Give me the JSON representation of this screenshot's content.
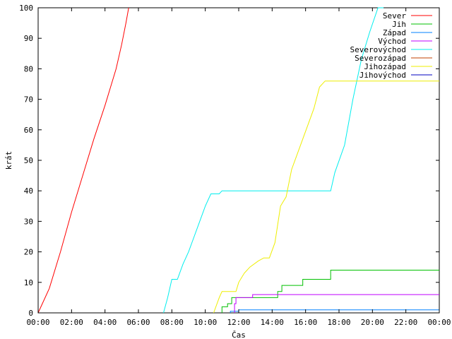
{
  "chart_data": {
    "type": "line",
    "title": "",
    "xlabel": "Čas",
    "ylabel": "krát",
    "xlim": [
      "00:00",
      "24:00"
    ],
    "ylim": [
      0,
      100
    ],
    "grid": false,
    "legend_position": "top-right",
    "x_ticks": [
      "00:00",
      "02:00",
      "04:00",
      "06:00",
      "08:00",
      "10:00",
      "12:00",
      "14:00",
      "16:00",
      "18:00",
      "20:00",
      "22:00",
      "00:00"
    ],
    "y_ticks": [
      "0",
      "10",
      "20",
      "30",
      "40",
      "50",
      "60",
      "70",
      "80",
      "90",
      "100"
    ],
    "series": [
      {
        "name": "Sever",
        "color": "#ff0000",
        "points": [
          [
            "00:00",
            0
          ],
          [
            "00:40",
            8
          ],
          [
            "01:20",
            20
          ],
          [
            "02:00",
            33
          ],
          [
            "02:40",
            45
          ],
          [
            "03:20",
            57
          ],
          [
            "04:00",
            68
          ],
          [
            "04:40",
            80
          ],
          [
            "05:00",
            88
          ],
          [
            "05:15",
            95
          ],
          [
            "05:25",
            100
          ]
        ]
      },
      {
        "name": "Jih",
        "color": "#00c000",
        "points": [
          [
            "11:00",
            0
          ],
          [
            "11:00",
            2
          ],
          [
            "11:20",
            2
          ],
          [
            "11:20",
            3
          ],
          [
            "11:35",
            3
          ],
          [
            "11:35",
            5
          ],
          [
            "14:20",
            5
          ],
          [
            "14:20",
            7
          ],
          [
            "14:35",
            7
          ],
          [
            "14:35",
            9
          ],
          [
            "15:50",
            9
          ],
          [
            "15:50",
            11
          ],
          [
            "17:30",
            11
          ],
          [
            "17:30",
            14
          ],
          [
            "24:00",
            14
          ]
        ]
      },
      {
        "name": "Západ",
        "color": "#0080ff",
        "points": [
          [
            "11:30",
            0
          ],
          [
            "11:30",
            0.5
          ],
          [
            "12:00",
            0.5
          ],
          [
            "12:00",
            1
          ],
          [
            "24:00",
            1
          ]
        ]
      },
      {
        "name": "Východ",
        "color": "#c000ff",
        "points": [
          [
            "11:45",
            0
          ],
          [
            "11:45",
            3
          ],
          [
            "11:50",
            3
          ],
          [
            "11:50",
            5
          ],
          [
            "12:50",
            5
          ],
          [
            "12:50",
            6
          ],
          [
            "24:00",
            6
          ]
        ]
      },
      {
        "name": "Severovýchod",
        "color": "#00eeee",
        "points": [
          [
            "07:30",
            0
          ],
          [
            "07:45",
            5
          ],
          [
            "08:00",
            11
          ],
          [
            "08:20",
            11
          ],
          [
            "08:40",
            16
          ],
          [
            "09:00",
            20
          ],
          [
            "09:20",
            25
          ],
          [
            "09:40",
            30
          ],
          [
            "10:00",
            35
          ],
          [
            "10:20",
            39
          ],
          [
            "10:50",
            39
          ],
          [
            "11:00",
            40
          ],
          [
            "17:30",
            40
          ],
          [
            "17:45",
            46
          ],
          [
            "18:20",
            55
          ],
          [
            "18:50",
            70
          ],
          [
            "19:20",
            83
          ],
          [
            "19:50",
            92
          ],
          [
            "20:20",
            100
          ],
          [
            "20:40",
            100
          ]
        ]
      },
      {
        "name": "Severozápad",
        "color": "#c04000",
        "points": []
      },
      {
        "name": "Jihozápad",
        "color": "#eeee00",
        "points": [
          [
            "10:30",
            0
          ],
          [
            "10:50",
            5
          ],
          [
            "11:00",
            7
          ],
          [
            "11:50",
            7
          ],
          [
            "12:00",
            10
          ],
          [
            "12:20",
            13
          ],
          [
            "12:40",
            15
          ],
          [
            "13:10",
            17
          ],
          [
            "13:30",
            18
          ],
          [
            "13:50",
            18
          ],
          [
            "14:10",
            23
          ],
          [
            "14:30",
            35
          ],
          [
            "14:50",
            38
          ],
          [
            "15:10",
            47
          ],
          [
            "15:30",
            52
          ],
          [
            "15:50",
            57
          ],
          [
            "16:10",
            62
          ],
          [
            "16:30",
            67
          ],
          [
            "16:50",
            74
          ],
          [
            "17:10",
            76
          ],
          [
            "24:00",
            76
          ]
        ]
      },
      {
        "name": "Jihovýchod",
        "color": "#0000c0",
        "points": []
      }
    ]
  }
}
